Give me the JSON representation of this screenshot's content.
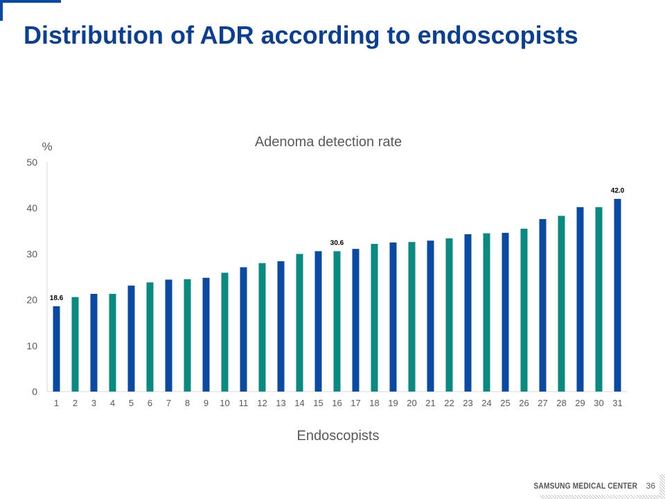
{
  "slide": {
    "title": "Distribution of ADR according to endoscopists",
    "footer_brand": "SAMSUNG MEDICAL CENTER",
    "page_number": "36"
  },
  "colors": {
    "title": "#0b3f93",
    "series_a": "#0a4aa3",
    "series_b": "#0b8a82",
    "axis_text": "#595959",
    "corner_accent": "#0a4aa3"
  },
  "chart_data": {
    "type": "bar",
    "title": "Adenoma detection rate",
    "xlabel": "Endoscopists",
    "ylabel": "%",
    "ylim": [
      0,
      50
    ],
    "yticks": [
      0,
      10,
      20,
      30,
      40,
      50
    ],
    "grid": false,
    "legend": "none",
    "categories": [
      "1",
      "2",
      "3",
      "4",
      "5",
      "6",
      "7",
      "8",
      "9",
      "10",
      "11",
      "12",
      "13",
      "14",
      "15",
      "16",
      "17",
      "18",
      "19",
      "20",
      "21",
      "22",
      "23",
      "24",
      "25",
      "26",
      "27",
      "28",
      "29",
      "30",
      "31"
    ],
    "values": [
      18.6,
      20.6,
      21.3,
      21.3,
      23.1,
      23.8,
      24.4,
      24.5,
      24.8,
      25.9,
      27.1,
      28.0,
      28.4,
      30.0,
      30.6,
      30.6,
      31.1,
      32.2,
      32.5,
      32.6,
      32.9,
      33.4,
      34.3,
      34.5,
      34.6,
      35.5,
      37.6,
      38.3,
      40.2,
      40.2,
      42.0
    ],
    "bar_colors": [
      "#0a4aa3",
      "#0b8a82",
      "#0a4aa3",
      "#0b8a82",
      "#0a4aa3",
      "#0b8a82",
      "#0a4aa3",
      "#0b8a82",
      "#0a4aa3",
      "#0b8a82",
      "#0a4aa3",
      "#0b8a82",
      "#0a4aa3",
      "#0b8a82",
      "#0a4aa3",
      "#0b8a82",
      "#0a4aa3",
      "#0b8a82",
      "#0a4aa3",
      "#0b8a82",
      "#0a4aa3",
      "#0b8a82",
      "#0a4aa3",
      "#0b8a82",
      "#0a4aa3",
      "#0b8a82",
      "#0a4aa3",
      "#0b8a82",
      "#0a4aa3",
      "#0b8a82",
      "#0a4aa3"
    ],
    "data_labels": [
      {
        "index": 0,
        "text": "18.6"
      },
      {
        "index": 15,
        "text": "30.6"
      },
      {
        "index": 30,
        "text": "42.0"
      }
    ]
  }
}
